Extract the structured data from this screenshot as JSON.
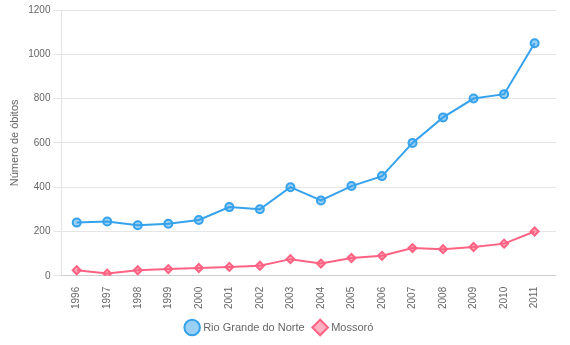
{
  "chart_data": {
    "type": "line",
    "x": [
      1996,
      1997,
      1998,
      1999,
      2000,
      2001,
      2002,
      2003,
      2004,
      2005,
      2006,
      2007,
      2008,
      2009,
      2010,
      2011
    ],
    "xlim": [
      1995.5,
      2011.7
    ],
    "xticks": [
      1996,
      1997,
      1998,
      1999,
      2000,
      2001,
      2002,
      2003,
      2004,
      2005,
      2006,
      2007,
      2008,
      2009,
      2010,
      2011
    ],
    "y_label": "Número de óbitos",
    "ylim": [
      0,
      1200
    ],
    "yticks": [
      0,
      200,
      400,
      600,
      800,
      1000,
      1200
    ],
    "grid": "y",
    "legend": "bottom",
    "series": [
      {
        "name": "Rio Grande do Norte",
        "marker": "circle",
        "values": [
          240,
          245,
          228,
          235,
          252,
          310,
          300,
          400,
          340,
          405,
          450,
          600,
          715,
          800,
          820,
          1050
        ]
      },
      {
        "name": "Mossoró",
        "marker": "diamond",
        "values": [
          25,
          10,
          25,
          30,
          35,
          40,
          45,
          75,
          55,
          80,
          90,
          125,
          120,
          130,
          145,
          200
        ]
      }
    ]
  }
}
